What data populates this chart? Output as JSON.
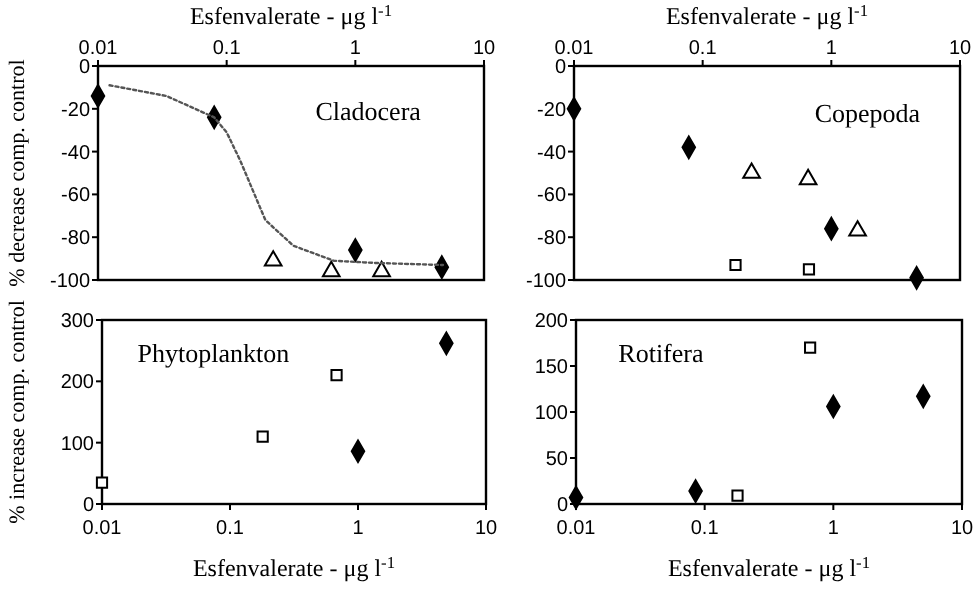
{
  "chart_data": [
    {
      "type": "scatter",
      "title": "Cladocera",
      "xlabel": "Esfenvalerate - μg l$^{-1}$",
      "ylabel": "% decrease comp. control",
      "log": "x",
      "xlim": [
        0.01,
        10
      ],
      "xticks": [
        0.01,
        0.1,
        1,
        10
      ],
      "ylim": [
        -100,
        0
      ],
      "yticks": [
        -100,
        -80,
        -60,
        -40,
        -20,
        0
      ],
      "series": [
        {
          "marker": "diamond",
          "color": "#000000",
          "x": [
            0.01,
            0.08,
            1,
            4.7
          ],
          "values": [
            -14,
            -24,
            -86,
            -94
          ]
        },
        {
          "marker": "triangle",
          "color": "#000000",
          "x": [
            0.23,
            0.65,
            1.6
          ],
          "values": [
            -91,
            -96,
            -96
          ]
        },
        {
          "type": "line",
          "line_style": "dotted",
          "color": "#555555",
          "x": [
            0.0123,
            0.034,
            0.08,
            0.1,
            0.127,
            0.162,
            0.2,
            0.33,
            0.68,
            1.38,
            4.8
          ],
          "values": [
            -9,
            -14,
            -24,
            -31,
            -44,
            -59,
            -72,
            -84,
            -91,
            -92,
            -93
          ]
        }
      ]
    },
    {
      "type": "scatter",
      "title": "Copepoda",
      "xlabel": "Esfenvalerate - μg l$^{-1}$",
      "log": "x",
      "xlim": [
        0.01,
        10
      ],
      "xticks": [
        0.01,
        0.1,
        1,
        10
      ],
      "ylim": [
        -100,
        0
      ],
      "yticks": [
        -100,
        -80,
        -60,
        -40,
        -20,
        0
      ],
      "series": [
        {
          "marker": "diamond",
          "color": "#000000",
          "x": [
            0.01,
            0.078,
            1,
            4.6
          ],
          "values": [
            -20,
            -38,
            -76,
            -99
          ]
        },
        {
          "marker": "triangle",
          "color": "#000000",
          "x": [
            0.24,
            0.66,
            1.6
          ],
          "values": [
            -50,
            -53,
            -77
          ]
        },
        {
          "marker": "square",
          "color": "#000000",
          "x": [
            0.18,
            0.67
          ],
          "values": [
            -93,
            -95
          ]
        }
      ]
    },
    {
      "type": "scatter",
      "title": "Phytoplankton",
      "xlabel": "Esfenvalerate - μg l$^{-1}$",
      "ylabel": "% increase comp. control",
      "log": "x",
      "xlim": [
        0.01,
        10
      ],
      "xticks": [
        0.01,
        0.1,
        1,
        10
      ],
      "ylim": [
        0,
        300
      ],
      "yticks": [
        0,
        100,
        200,
        300
      ],
      "series": [
        {
          "marker": "diamond",
          "color": "#000000",
          "x": [
            1,
            4.9
          ],
          "values": [
            86,
            262
          ]
        },
        {
          "marker": "square",
          "color": "#000000",
          "x": [
            0.01,
            0.18,
            0.68
          ],
          "values": [
            35,
            110,
            210
          ]
        }
      ]
    },
    {
      "type": "scatter",
      "title": "Rotifera",
      "xlabel": "Esfenvalerate - μg l$^{-1}$",
      "log": "x",
      "xlim": [
        0.01,
        10
      ],
      "xticks": [
        0.01,
        0.1,
        1,
        10
      ],
      "ylim": [
        0,
        200
      ],
      "yticks": [
        0,
        50,
        100,
        150,
        200
      ],
      "series": [
        {
          "marker": "diamond",
          "color": "#000000",
          "x": [
            0.01,
            0.085,
            1,
            5
          ],
          "values": [
            7,
            14,
            106,
            117
          ]
        },
        {
          "marker": "square",
          "color": "#000000",
          "x": [
            0.18,
            0.66
          ],
          "values": [
            9,
            170
          ]
        }
      ]
    }
  ]
}
